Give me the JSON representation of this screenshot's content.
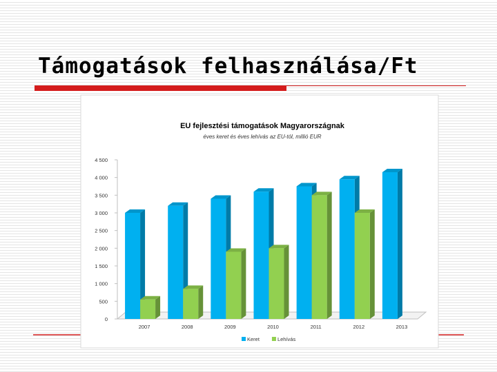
{
  "slide_title": "Támogatások felhasználása/Ft",
  "chart_data": {
    "type": "bar",
    "title": "EU fejlesztési támogatások Magyarországnak",
    "subtitle": "éves keret és éves lehívás az EU-tól, millió EUR",
    "categories": [
      "2007",
      "2008",
      "2009",
      "2010",
      "2011",
      "2012",
      "2013"
    ],
    "series": [
      {
        "name": "Keret",
        "color": "#00b0f0",
        "values": [
          3000,
          3200,
          3400,
          3600,
          3750,
          3950,
          4150
        ]
      },
      {
        "name": "Lehívás",
        "color": "#92d050",
        "values": [
          550,
          850,
          1900,
          2000,
          3500,
          3000,
          null
        ]
      }
    ],
    "ylim": [
      0,
      4500
    ],
    "yticks": [
      0,
      500,
      {
        "value": 1000,
        "label": "1 000"
      },
      {
        "value": 1500,
        "label": "1 500"
      },
      {
        "value": 2000,
        "label": "2 000"
      },
      {
        "value": 2500,
        "label": "2 500"
      },
      {
        "value": 3000,
        "label": "3 000"
      },
      {
        "value": 3500,
        "label": "3 500"
      },
      {
        "value": 4000,
        "label": "4 000"
      },
      {
        "value": 4500,
        "label": "4 500"
      }
    ],
    "legend": "bottom"
  }
}
